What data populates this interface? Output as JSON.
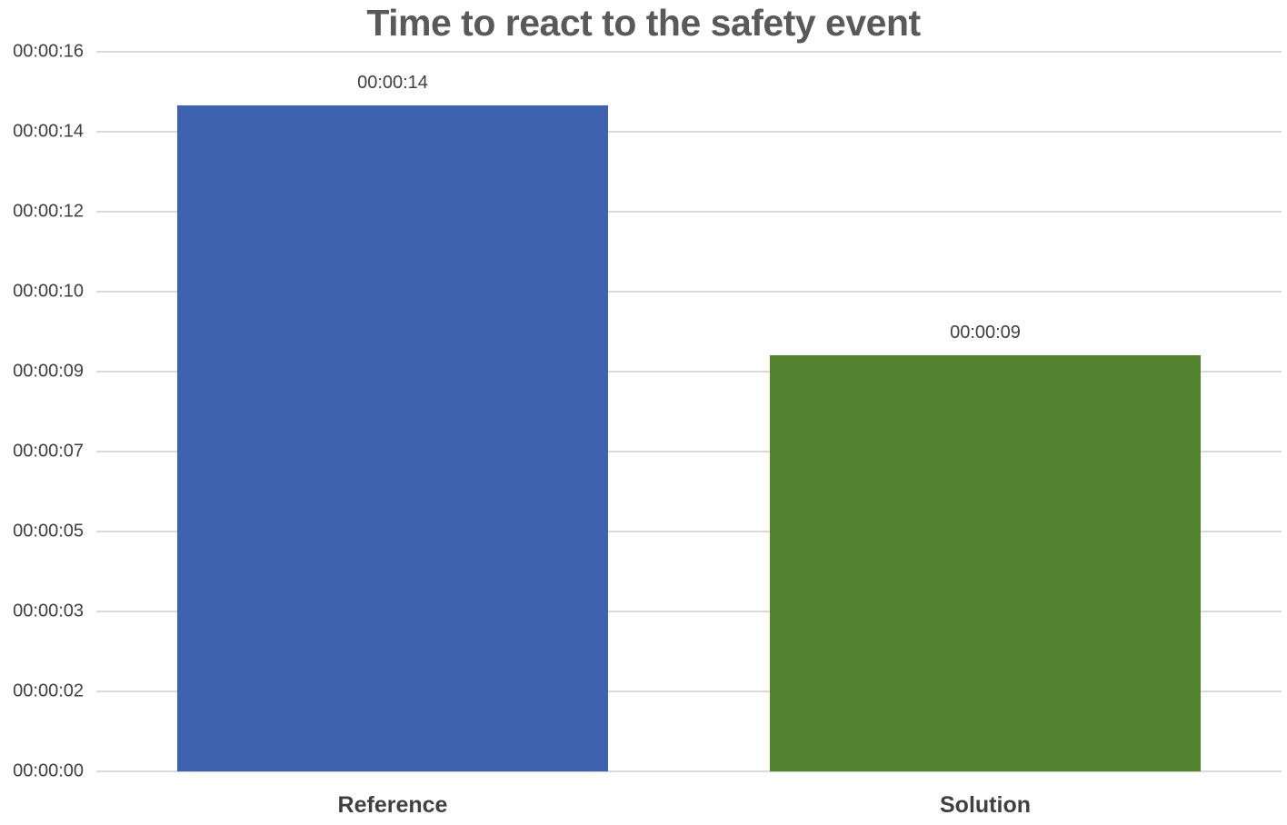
{
  "chart_data": {
    "type": "bar",
    "title": "Time to react to the safety event",
    "categories": [
      "Reference",
      "Solution"
    ],
    "values": [
      14.4,
      9.0
    ],
    "value_unit": "seconds",
    "data_labels": [
      "00:00:14",
      "00:00:09"
    ],
    "bar_colors": [
      "#3E63AE",
      "#53832F"
    ],
    "xlabel": "",
    "ylabel": "",
    "ylim_seconds": [
      0,
      15.552
    ],
    "y_tick_labels_bottom_to_top": [
      "00:00:00",
      "00:00:02",
      "00:00:03",
      "00:00:05",
      "00:00:07",
      "00:00:09",
      "00:00:10",
      "00:00:12",
      "00:00:14",
      "00:00:16"
    ],
    "y_tick_values_seconds": [
      0,
      1.728,
      3.456,
      5.184,
      6.912,
      8.64,
      10.368,
      12.096,
      13.824,
      15.552
    ],
    "grid": true,
    "legend": "none",
    "colors": {
      "gridline": "#D9D9D9",
      "title_text": "#595959",
      "axis_text": "#404040",
      "background": "#FFFFFF"
    }
  }
}
